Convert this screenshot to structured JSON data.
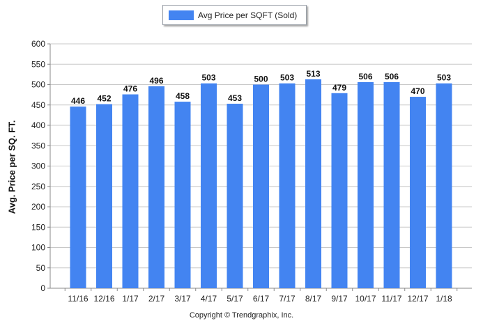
{
  "legend": {
    "label": "Avg Price per SQFT (Sold)"
  },
  "footer": {
    "copyright": "Copyright © Trendgraphix, Inc."
  },
  "chart_data": {
    "type": "bar",
    "title": "",
    "xlabel": "",
    "ylabel": "Avg. Price per SQ. FT.",
    "categories": [
      "11/16",
      "12/16",
      "1/17",
      "2/17",
      "3/17",
      "4/17",
      "5/17",
      "6/17",
      "7/17",
      "8/17",
      "9/17",
      "10/17",
      "11/17",
      "12/17",
      "1/18"
    ],
    "series": [
      {
        "name": "Avg Price per SQFT (Sold)",
        "values": [
          446,
          452,
          476,
          496,
          458,
          503,
          453,
          500,
          503,
          513,
          479,
          506,
          506,
          470,
          503
        ],
        "color": "#4384f1"
      }
    ],
    "ylim": [
      0,
      600
    ],
    "yticks": [
      0,
      50,
      100,
      150,
      200,
      250,
      300,
      350,
      400,
      450,
      500,
      550,
      600
    ],
    "grid": true,
    "data_labels": true,
    "legend_position": "top-center"
  }
}
